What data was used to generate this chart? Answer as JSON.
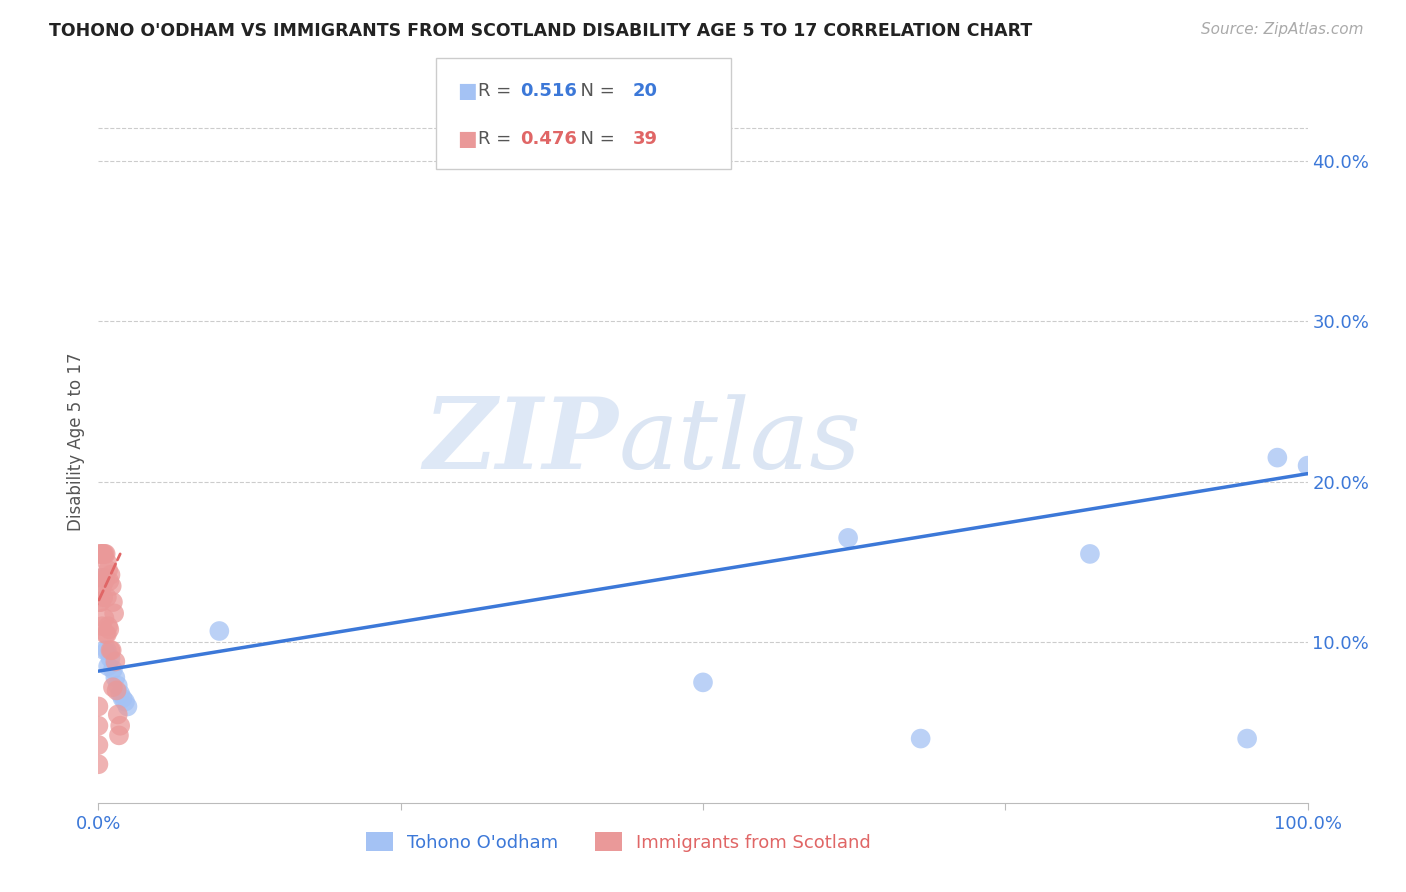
{
  "title": "TOHONO O'ODHAM VS IMMIGRANTS FROM SCOTLAND DISABILITY AGE 5 TO 17 CORRELATION CHART",
  "source": "Source: ZipAtlas.com",
  "ylabel": "Disability Age 5 to 17",
  "xlim": [
    0.0,
    1.0
  ],
  "ylim": [
    0.0,
    0.45
  ],
  "yticks": [
    0.1,
    0.2,
    0.3,
    0.4
  ],
  "ytick_labels": [
    "10.0%",
    "20.0%",
    "30.0%",
    "40.0%"
  ],
  "xticks": [
    0.0,
    0.25,
    0.5,
    0.75,
    1.0
  ],
  "xtick_labels": [
    "0.0%",
    "",
    "",
    "",
    "100.0%"
  ],
  "blue_color": "#a4c2f4",
  "pink_color": "#ea9999",
  "blue_line_color": "#3c78d8",
  "pink_line_color": "#e06666",
  "blue_series": {
    "label": "Tohono O'odham",
    "R": 0.516,
    "N": 20,
    "x": [
      0.003,
      0.005,
      0.007,
      0.008,
      0.01,
      0.012,
      0.014,
      0.016,
      0.018,
      0.02,
      0.022,
      0.024,
      0.1,
      0.5,
      0.62,
      0.68,
      0.82,
      0.95,
      0.975,
      1.0
    ],
    "y": [
      0.14,
      0.095,
      0.095,
      0.085,
      0.09,
      0.083,
      0.078,
      0.073,
      0.068,
      0.065,
      0.063,
      0.06,
      0.107,
      0.075,
      0.165,
      0.04,
      0.155,
      0.04,
      0.215,
      0.21
    ]
  },
  "pink_series": {
    "label": "Immigrants from Scotland",
    "R": 0.476,
    "N": 39,
    "x": [
      0.0,
      0.0,
      0.0,
      0.0,
      0.001,
      0.001,
      0.002,
      0.002,
      0.002,
      0.003,
      0.003,
      0.003,
      0.004,
      0.004,
      0.005,
      0.005,
      0.005,
      0.006,
      0.006,
      0.006,
      0.007,
      0.007,
      0.007,
      0.008,
      0.008,
      0.009,
      0.009,
      0.01,
      0.01,
      0.011,
      0.011,
      0.012,
      0.012,
      0.013,
      0.014,
      0.015,
      0.016,
      0.017,
      0.018
    ],
    "y": [
      0.06,
      0.048,
      0.036,
      0.024,
      0.155,
      0.125,
      0.155,
      0.14,
      0.125,
      0.155,
      0.135,
      0.11,
      0.155,
      0.128,
      0.155,
      0.138,
      0.115,
      0.155,
      0.14,
      0.105,
      0.15,
      0.128,
      0.105,
      0.145,
      0.11,
      0.138,
      0.108,
      0.142,
      0.095,
      0.135,
      0.095,
      0.125,
      0.072,
      0.118,
      0.088,
      0.07,
      0.055,
      0.042,
      0.048
    ]
  },
  "blue_line": {
    "x0": 0.0,
    "y0": 0.082,
    "x1": 1.0,
    "y1": 0.205
  },
  "pink_line": {
    "x0": -0.02,
    "y0": 0.093,
    "x1": 0.018,
    "y1": 0.155
  },
  "watermark_zip": "ZIP",
  "watermark_atlas": "atlas",
  "background_color": "#ffffff",
  "grid_color": "#cccccc"
}
